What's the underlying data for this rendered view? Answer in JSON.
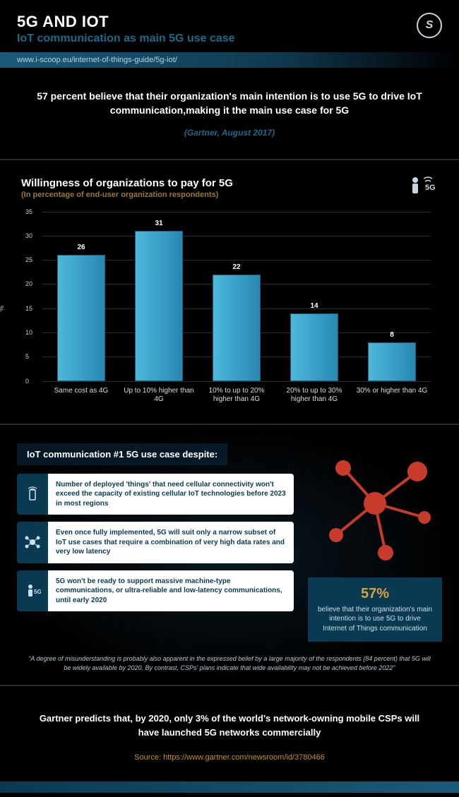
{
  "header": {
    "title": "5G AND IOT",
    "subtitle": "IoT communication as main 5G use case",
    "url": "www.i-scoop.eu/internet-of-things-guide/5g-iot/"
  },
  "lead": {
    "text": "57 percent believe that their organization's main intention is to use 5G to drive IoT communication,making it the main use case for 5G",
    "source": "(Gartner, August 2017)"
  },
  "chart": {
    "type": "bar",
    "title": "Willingness of organizations to pay for 5G",
    "subtitle": "(In percentage of end-user organization respondents)",
    "y_axis_label": "%",
    "ylim": [
      0,
      35
    ],
    "ytick_step": 5,
    "yticks": [
      0,
      5,
      10,
      15,
      20,
      25,
      30,
      35
    ],
    "categories": [
      "Same cost as 4G",
      "Up to 10% higher than 4G",
      "10% to up to 20% higher than 4G",
      "20% to up to 30% higher than 4G",
      "30% or higher than 4G"
    ],
    "values": [
      26,
      31,
      22,
      14,
      8
    ],
    "bar_color": "#3aa0c8",
    "bar_border": "#1a5a7a",
    "grid_color": "#2a2a2a",
    "background_color": "#000000",
    "label_fontsize": 10,
    "title_fontsize": 15
  },
  "factoids": {
    "title": "IoT communication #1 5G use case despite:",
    "items": [
      "Number of deployed 'things' that need cellular connectivity won't exceed the capacity of existing cellular IoT technologies before 2023 in most regions",
      "Even once fully implemented, 5G will suit only a narrow subset of IoT use cases that require a combination of very high data rates and very low latency",
      "5G won't be ready to support massive machine-type communications, or ultra-reliable and low-latency communications, until early 2020"
    ],
    "stat_pct": "57%",
    "stat_text": "believe that their organization's main intention is to use 5G to drive Internet of Things communication",
    "quote": "\"A degree of misunderstanding is probably also apparent in the expressed belief by a large majority of the respondents (84 percent) that 5G will be widely available by 2020. By contrast, CSPs' plans indicate that wide availability may not be achieved before 2022\"",
    "node_color": "#c83a2a",
    "icon_bg": "#0a3a52",
    "card_bg": "#ffffff"
  },
  "bottom": {
    "text": "Gartner predicts that, by 2020, only 3% of the world's network-owning mobile CSPs will have launched 5G networks commercially",
    "source_label": "Source: ",
    "source_url": "https://www.gartner.com/newsroom/id/3780466"
  },
  "colors": {
    "accent": "#1b6a8a",
    "gold": "#c8941a",
    "red": "#c83a2a"
  }
}
